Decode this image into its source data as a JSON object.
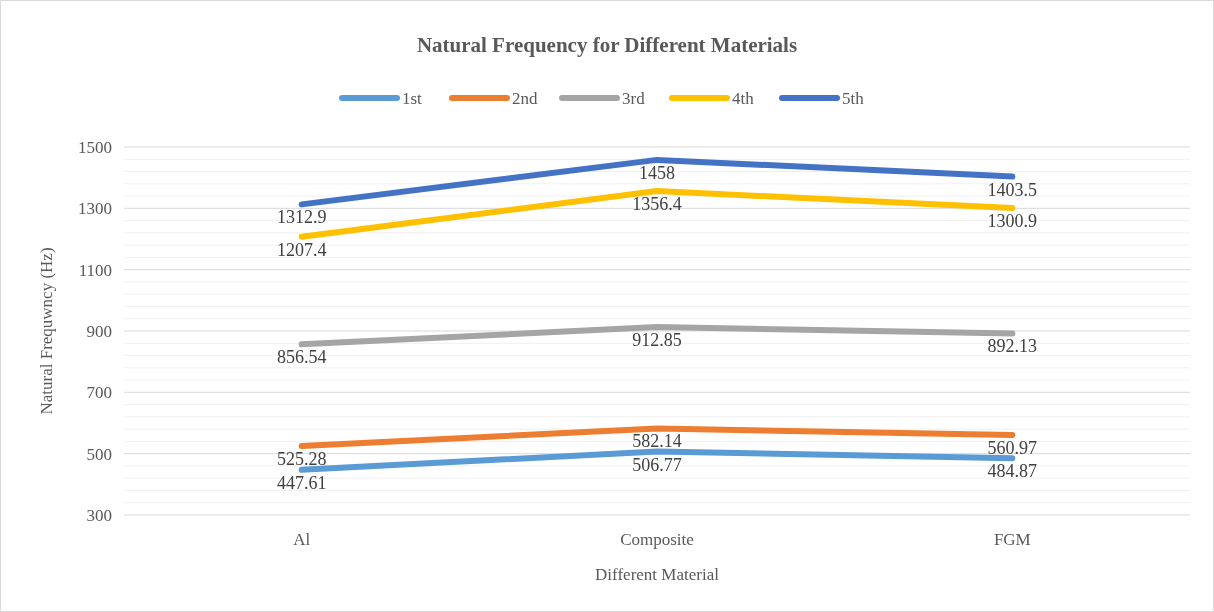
{
  "chart_data": {
    "type": "line",
    "title": "Natural Frequency for Different Materials",
    "xlabel": "Different Material",
    "ylabel": "Natural Frequwncy (Hz)",
    "categories": [
      "Al",
      "Composite",
      "FGM"
    ],
    "series": [
      {
        "name": "1st",
        "color": "#5b9bd5",
        "values": [
          447.61,
          506.77,
          484.87
        ]
      },
      {
        "name": "2nd",
        "color": "#ed7d31",
        "values": [
          525.28,
          582.14,
          560.97
        ]
      },
      {
        "name": "3rd",
        "color": "#a5a5a5",
        "values": [
          856.54,
          912.85,
          892.13
        ]
      },
      {
        "name": "4th",
        "color": "#ffc000",
        "values": [
          1207.4,
          1356.4,
          1300.9
        ]
      },
      {
        "name": "5th",
        "color": "#4472c4",
        "values": [
          1312.9,
          1458,
          1403.5
        ]
      }
    ],
    "ylim": [
      300,
      1500
    ],
    "yticks": [
      300,
      {
        "value": 340,
        "label": null
      },
      {
        "value": 380,
        "label": null
      },
      {
        "value": 420,
        "label": null
      },
      {
        "value": 460,
        "label": null
      },
      500,
      {
        "value": 540,
        "label": null
      },
      {
        "value": 580,
        "label": null
      },
      {
        "value": 620,
        "label": null
      },
      {
        "value": 660,
        "label": null
      },
      700,
      {
        "value": 740,
        "label": null
      },
      {
        "value": 780,
        "label": null
      },
      {
        "value": 820,
        "label": null
      },
      {
        "value": 860,
        "label": null
      },
      900,
      {
        "value": 940,
        "label": null
      },
      {
        "value": 980,
        "label": null
      },
      {
        "value": 1020,
        "label": null
      },
      {
        "value": 1060,
        "label": null
      },
      1100,
      {
        "value": 1140,
        "label": null
      },
      {
        "value": 1180,
        "label": null
      },
      {
        "value": 1220,
        "label": null
      },
      {
        "value": 1260,
        "label": null
      },
      1300,
      {
        "value": 1340,
        "label": null
      },
      {
        "value": 1380,
        "label": null
      },
      {
        "value": 1420,
        "label": null
      },
      {
        "value": 1460,
        "label": null
      },
      1500
    ],
    "grid": true,
    "legend": "top",
    "data_labels": true,
    "marker": "none",
    "line_style": "solid"
  }
}
